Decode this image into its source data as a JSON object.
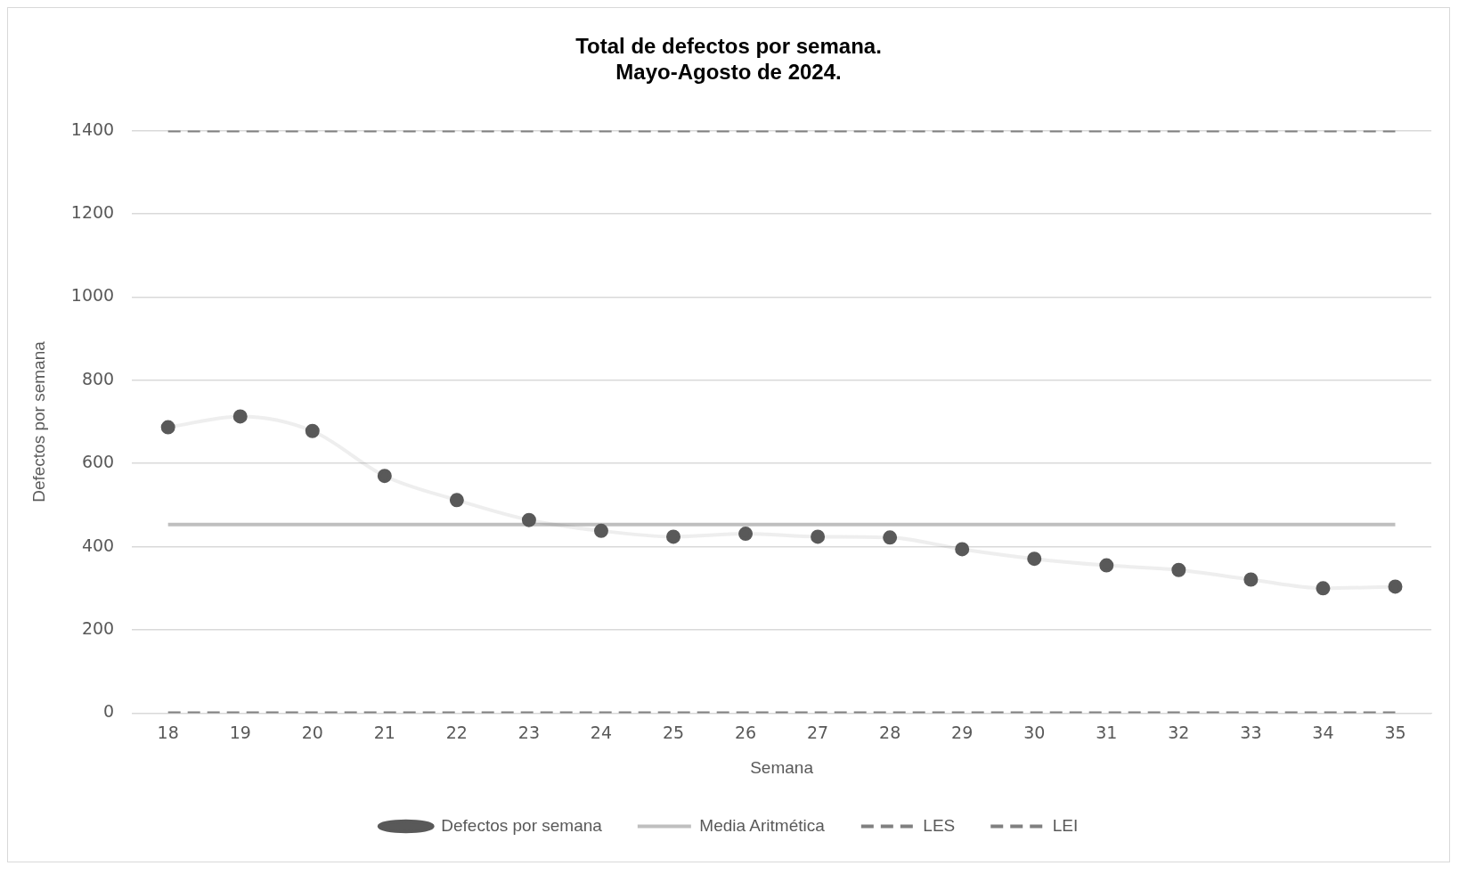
{
  "chart_data": {
    "type": "line",
    "title": [
      "Total de defectos por semana.",
      "Mayo-Agosto de 2024."
    ],
    "xlabel": "Semana",
    "ylabel": "Defectos por semana",
    "categories": [
      "18",
      "19",
      "20",
      "21",
      "22",
      "23",
      "24",
      "25",
      "26",
      "27",
      "28",
      "29",
      "30",
      "31",
      "32",
      "33",
      "34",
      "35"
    ],
    "series": [
      {
        "name": "Defectos por semana",
        "color": "#595959",
        "marker": "circle",
        "line_style": "solid",
        "values": [
          687,
          713,
          678,
          570,
          512,
          464,
          438,
          424,
          431,
          424,
          422,
          394,
          371,
          355,
          344,
          321,
          300,
          304
        ]
      },
      {
        "name": "Media Aritmética",
        "color": "#bfbfbf",
        "marker": "none",
        "line_style": "solid",
        "values": [
          453,
          453,
          453,
          453,
          453,
          453,
          453,
          453,
          453,
          453,
          453,
          453,
          453,
          453,
          453,
          453,
          453,
          453
        ]
      },
      {
        "name": "LES",
        "color": "#808080",
        "marker": "none",
        "line_style": "dashed",
        "values": [
          1400,
          1400,
          1400,
          1400,
          1400,
          1400,
          1400,
          1400,
          1400,
          1400,
          1400,
          1400,
          1400,
          1400,
          1400,
          1400,
          1400,
          1400
        ]
      },
      {
        "name": "LEI",
        "color": "#808080",
        "marker": "none",
        "line_style": "dashed",
        "values": [
          0,
          0,
          0,
          0,
          0,
          0,
          0,
          0,
          0,
          0,
          0,
          0,
          0,
          0,
          0,
          0,
          0,
          0
        ]
      }
    ],
    "ylim": [
      0,
      1400
    ],
    "yticks": [
      0,
      200,
      400,
      600,
      800,
      1000,
      1200,
      1400
    ],
    "grid": "y",
    "legend": "bottom"
  }
}
